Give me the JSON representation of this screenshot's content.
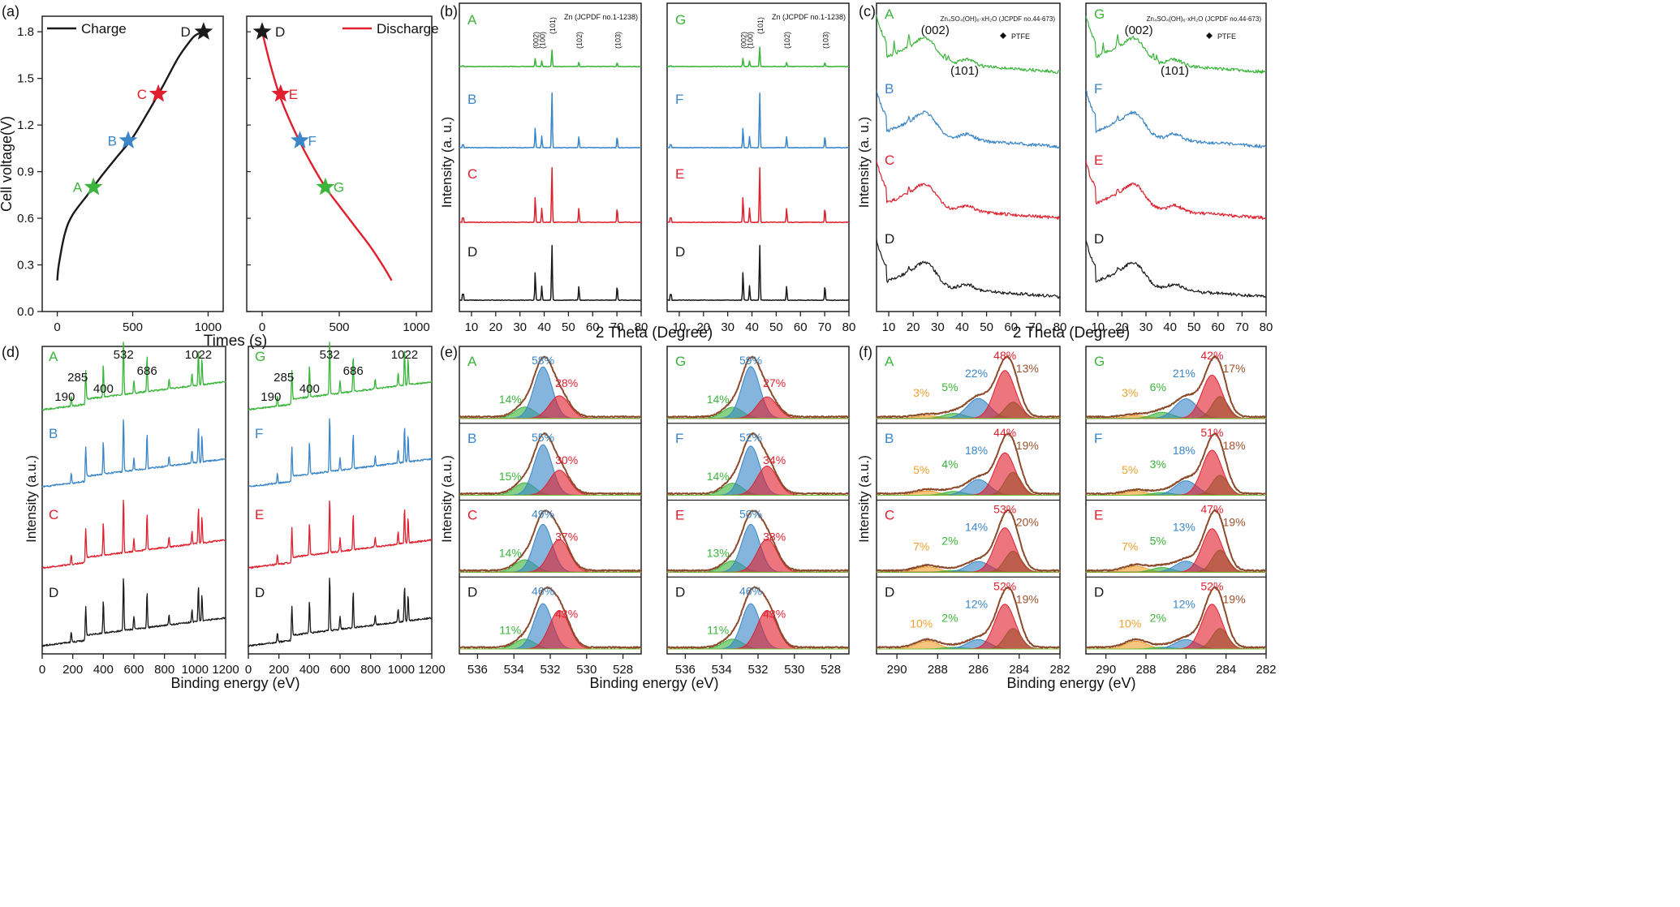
{
  "colors": {
    "green": "#3bb53b",
    "blue": "#3a86c8",
    "red": "#e0202e",
    "black": "#1a1a1a",
    "orange": "#f0a030",
    "brown": "#a0522d",
    "purple": "#7a5aa0",
    "env": "#8b4a2b"
  },
  "chart_data": [
    {
      "id": "a",
      "type": "line",
      "panel_label": "(a)",
      "ylabel": "Cell voltage(V)",
      "xlabel": "Times (s)",
      "ylim": [
        0,
        1.9
      ],
      "yticks": [
        "0.0",
        "0.3",
        "0.6",
        "0.9",
        "1.2",
        "1.5",
        "1.8"
      ],
      "subplots": [
        {
          "legend": "Charge",
          "color": "black",
          "xlim": [
            -100,
            1100
          ],
          "xticks": [
            "0",
            "500",
            "1000"
          ],
          "curve": [
            [
              0,
              0.2
            ],
            [
              10,
              0.3
            ],
            [
              50,
              0.5
            ],
            [
              100,
              0.62
            ],
            [
              200,
              0.75
            ],
            [
              300,
              0.88
            ],
            [
              400,
              1.0
            ],
            [
              500,
              1.12
            ],
            [
              600,
              1.28
            ],
            [
              700,
              1.45
            ],
            [
              800,
              1.63
            ],
            [
              880,
              1.74
            ],
            [
              920,
              1.78
            ],
            [
              970,
              1.8
            ]
          ],
          "points": [
            {
              "label": "A",
              "x": 240,
              "y": 0.8,
              "color": "green"
            },
            {
              "label": "B",
              "x": 470,
              "y": 1.1,
              "color": "blue"
            },
            {
              "label": "C",
              "x": 670,
              "y": 1.4,
              "color": "red"
            },
            {
              "label": "D",
              "x": 970,
              "y": 1.8,
              "color": "black"
            }
          ]
        },
        {
          "legend": "Discharge",
          "color": "red",
          "xlim": [
            -100,
            1100
          ],
          "xticks": [
            "0",
            "500",
            "1000"
          ],
          "curve": [
            [
              0,
              1.8
            ],
            [
              50,
              1.6
            ],
            [
              110,
              1.4
            ],
            [
              170,
              1.25
            ],
            [
              240,
              1.1
            ],
            [
              320,
              0.95
            ],
            [
              410,
              0.8
            ],
            [
              500,
              0.68
            ],
            [
              600,
              0.55
            ],
            [
              700,
              0.42
            ],
            [
              780,
              0.3
            ],
            [
              840,
              0.2
            ]
          ],
          "points": [
            {
              "label": "D",
              "x": 0,
              "y": 1.8,
              "color": "black"
            },
            {
              "label": "E",
              "x": 120,
              "y": 1.4,
              "color": "red"
            },
            {
              "label": "F",
              "x": 245,
              "y": 1.1,
              "color": "blue"
            },
            {
              "label": "G",
              "x": 410,
              "y": 0.8,
              "color": "green"
            }
          ]
        }
      ]
    },
    {
      "id": "b",
      "type": "line",
      "panel_label": "(b)",
      "ylabel": "Intensity (a. u.)",
      "xlabel": "2 Theta (Degree)",
      "xlim": [
        5,
        80
      ],
      "xticks": [
        "10",
        "20",
        "30",
        "40",
        "50",
        "60",
        "70",
        "80"
      ],
      "ref_note": "Zn (JCPDF no.1-1238)",
      "peak_labels": [
        "(002)",
        "(100)",
        "(101)",
        "(102)",
        "(103)"
      ],
      "peaks": [
        36.3,
        39.0,
        43.2,
        54.3,
        70.1
      ],
      "subplots": [
        {
          "ref_note": "Zn (JCPDF no.1-1238)",
          "traces": [
            {
              "label": "A",
              "color": "green",
              "heights": [
                0.3,
                0.2,
                0.6,
                0.15,
                0.15
              ]
            },
            {
              "label": "B",
              "color": "blue",
              "heights": [
                0.35,
                0.2,
                1.0,
                0.2,
                0.2
              ]
            },
            {
              "label": "C",
              "color": "red",
              "heights": [
                0.45,
                0.25,
                1.0,
                0.25,
                0.25
              ]
            },
            {
              "label": "D",
              "color": "black",
              "heights": [
                0.5,
                0.25,
                1.0,
                0.25,
                0.25
              ]
            }
          ]
        },
        {
          "ref_note": "Zn (JCPDF no.1-1238)",
          "traces": [
            {
              "label": "G",
              "color": "green",
              "heights": [
                0.3,
                0.2,
                0.7,
                0.15,
                0.15
              ]
            },
            {
              "label": "F",
              "color": "blue",
              "heights": [
                0.35,
                0.2,
                1.0,
                0.2,
                0.2
              ]
            },
            {
              "label": "E",
              "color": "red",
              "heights": [
                0.45,
                0.25,
                1.0,
                0.25,
                0.25
              ]
            },
            {
              "label": "D",
              "color": "black",
              "heights": [
                0.5,
                0.25,
                1.0,
                0.25,
                0.25
              ]
            }
          ]
        }
      ]
    },
    {
      "id": "c",
      "type": "line",
      "panel_label": "(c)",
      "ylabel": "Intensity (a. u.)",
      "xlabel": "2 Theta (Degree)",
      "xlim": [
        5,
        80
      ],
      "xticks": [
        "10",
        "20",
        "30",
        "40",
        "50",
        "60",
        "70",
        "80"
      ],
      "legend_zinc": "Zn₄SO₄(OH)₆·xH₂O (JCPDF no.44-673)",
      "legend_ptfe": "PTFE",
      "annotation_002": "(002)",
      "annotation_101": "(101)",
      "subplots": [
        {
          "traces": [
            {
              "label": "A",
              "color": "green"
            },
            {
              "label": "B",
              "color": "blue"
            },
            {
              "label": "C",
              "color": "red"
            },
            {
              "label": "D",
              "color": "black"
            }
          ]
        },
        {
          "traces": [
            {
              "label": "G",
              "color": "green"
            },
            {
              "label": "F",
              "color": "blue"
            },
            {
              "label": "E",
              "color": "red"
            },
            {
              "label": "D",
              "color": "black"
            }
          ]
        }
      ]
    },
    {
      "id": "d",
      "type": "line",
      "panel_label": "(d)",
      "ylabel": "Intensity (a.u.)",
      "xlabel": "Binding energy (eV)",
      "xlim": [
        0,
        1200
      ],
      "xticks": [
        "0",
        "200",
        "400",
        "600",
        "800",
        "1000",
        "1200"
      ],
      "peak_names": {
        "B 1s": 190,
        "C 1s": 285,
        "N 1s": 400,
        "O 1s": 532,
        "F 1s": 686,
        "Zn 2p": 1022
      },
      "subplots": [
        {
          "traces": [
            {
              "label": "A",
              "color": "green"
            },
            {
              "label": "B",
              "color": "blue"
            },
            {
              "label": "C",
              "color": "red"
            },
            {
              "label": "D",
              "color": "black"
            }
          ]
        },
        {
          "traces": [
            {
              "label": "G",
              "color": "green"
            },
            {
              "label": "F",
              "color": "blue"
            },
            {
              "label": "E",
              "color": "red"
            },
            {
              "label": "D",
              "color": "black"
            }
          ]
        }
      ]
    },
    {
      "id": "e",
      "type": "area",
      "panel_label": "(e)",
      "ylabel": "Intensity (a.u.)",
      "xlabel": "Binding energy (eV)",
      "xlim": [
        537,
        527
      ],
      "xticks": [
        "536",
        "534",
        "532",
        "530",
        "528"
      ],
      "components": [
        {
          "center": 533.4,
          "sigma": 0.55,
          "color": "green"
        },
        {
          "center": 532.4,
          "sigma": 0.5,
          "color": "blue"
        },
        {
          "center": 531.5,
          "sigma": 0.55,
          "color": "red"
        }
      ],
      "subplots": [
        {
          "rows": [
            {
              "label": "A",
              "color": "green",
              "pcts": [
                "14%",
                "58%",
                "28%"
              ]
            },
            {
              "label": "B",
              "color": "blue",
              "pcts": [
                "15%",
                "55%",
                "30%"
              ]
            },
            {
              "label": "C",
              "color": "red",
              "pcts": [
                "14%",
                "49%",
                "37%"
              ]
            },
            {
              "label": "D",
              "color": "black",
              "pcts": [
                "11%",
                "46%",
                "43%"
              ]
            }
          ]
        },
        {
          "rows": [
            {
              "label": "G",
              "color": "green",
              "pcts": [
                "14%",
                "59%",
                "27%"
              ]
            },
            {
              "label": "F",
              "color": "blue",
              "pcts": [
                "14%",
                "52%",
                "34%"
              ]
            },
            {
              "label": "E",
              "color": "red",
              "pcts": [
                "13%",
                "50%",
                "38%"
              ]
            },
            {
              "label": "D",
              "color": "black",
              "pcts": [
                "11%",
                "46%",
                "43%"
              ]
            }
          ]
        }
      ]
    },
    {
      "id": "f",
      "type": "area",
      "panel_label": "(f)",
      "ylabel": "Intensity (a.u.)",
      "xlabel": "Binding energy (eV)",
      "xlim": [
        291,
        282
      ],
      "xticks": [
        "290",
        "288",
        "286",
        "284",
        "282"
      ],
      "components": [
        {
          "center": 288.5,
          "sigma": 0.55,
          "color": "orange"
        },
        {
          "center": 287.2,
          "sigma": 0.5,
          "color": "green"
        },
        {
          "center": 286.0,
          "sigma": 0.55,
          "color": "blue"
        },
        {
          "center": 284.7,
          "sigma": 0.5,
          "color": "red"
        },
        {
          "center": 284.3,
          "sigma": 0.4,
          "color": "brown"
        }
      ],
      "subplots": [
        {
          "rows": [
            {
              "label": "A",
              "color": "green",
              "pcts": [
                "3%",
                "5%",
                "22%",
                "48%",
                "13%"
              ]
            },
            {
              "label": "B",
              "color": "blue",
              "pcts": [
                "5%",
                "4%",
                "18%",
                "44%",
                "19%"
              ]
            },
            {
              "label": "C",
              "color": "red",
              "pcts": [
                "7%",
                "2%",
                "14%",
                "53%",
                "20%"
              ]
            },
            {
              "label": "D",
              "color": "black",
              "pcts": [
                "10%",
                "2%",
                "12%",
                "52%",
                "19%"
              ]
            }
          ]
        },
        {
          "rows": [
            {
              "label": "G",
              "color": "green",
              "pcts": [
                "3%",
                "6%",
                "21%",
                "42%",
                "17%"
              ]
            },
            {
              "label": "F",
              "color": "blue",
              "pcts": [
                "5%",
                "3%",
                "18%",
                "51%",
                "18%"
              ]
            },
            {
              "label": "E",
              "color": "red",
              "pcts": [
                "7%",
                "5%",
                "13%",
                "47%",
                "19%"
              ]
            },
            {
              "label": "D",
              "color": "black",
              "pcts": [
                "10%",
                "2%",
                "12%",
                "52%",
                "19%"
              ]
            }
          ]
        }
      ]
    }
  ]
}
